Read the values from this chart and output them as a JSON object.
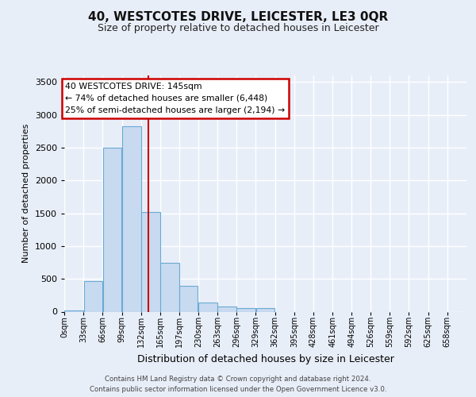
{
  "title": "40, WESTCOTES DRIVE, LEICESTER, LE3 0QR",
  "subtitle": "Size of property relative to detached houses in Leicester",
  "xlabel": "Distribution of detached houses by size in Leicester",
  "ylabel": "Number of detached properties",
  "bin_labels": [
    "0sqm",
    "33sqm",
    "66sqm",
    "99sqm",
    "132sqm",
    "165sqm",
    "197sqm",
    "230sqm",
    "263sqm",
    "296sqm",
    "329sqm",
    "362sqm",
    "395sqm",
    "428sqm",
    "461sqm",
    "494sqm",
    "526sqm",
    "559sqm",
    "592sqm",
    "625sqm",
    "658sqm"
  ],
  "bin_edges": [
    0,
    33,
    66,
    99,
    132,
    165,
    197,
    230,
    263,
    296,
    329,
    362,
    395,
    428,
    461,
    494,
    526,
    559,
    592,
    625,
    658
  ],
  "bar_values": [
    22,
    460,
    2500,
    2820,
    1520,
    750,
    390,
    145,
    75,
    60,
    55,
    0,
    0,
    0,
    0,
    0,
    0,
    0,
    0,
    0
  ],
  "bar_color": "#c8daf0",
  "bar_edge_color": "#6aaad4",
  "property_size": 145,
  "vline_color": "#cc0000",
  "annotation_line1": "40 WESTCOTES DRIVE: 145sqm",
  "annotation_line2": "← 74% of detached houses are smaller (6,448)",
  "annotation_line3": "25% of semi-detached houses are larger (2,194) →",
  "annotation_box_edgecolor": "#cc0000",
  "ylim": [
    0,
    3600
  ],
  "yticks": [
    0,
    500,
    1000,
    1500,
    2000,
    2500,
    3000,
    3500
  ],
  "footer_line1": "Contains HM Land Registry data © Crown copyright and database right 2024.",
  "footer_line2": "Contains public sector information licensed under the Open Government Licence v3.0.",
  "fig_bg_color": "#e8eef8",
  "plot_bg_color": "#e8eef8",
  "grid_color": "#ffffff",
  "title_fontsize": 11,
  "subtitle_fontsize": 9
}
